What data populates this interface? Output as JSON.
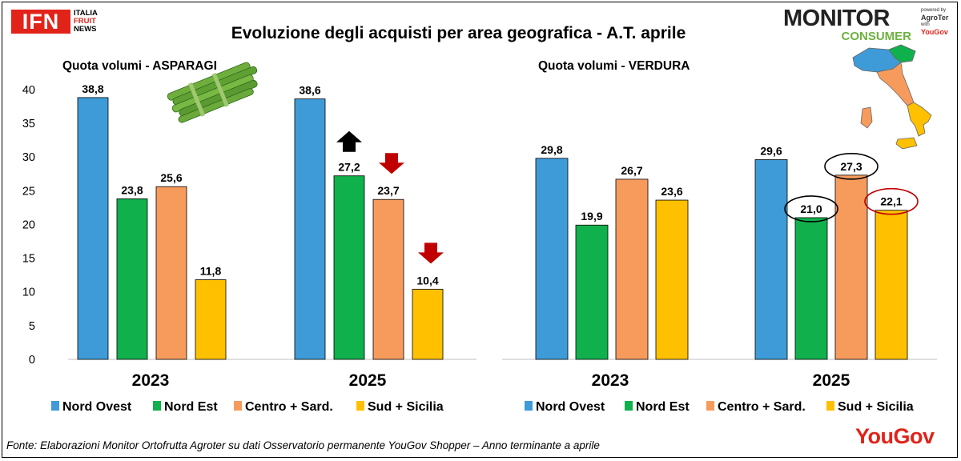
{
  "header": {
    "title": "Evoluzione degli acquisti per area geografica - A.T. aprile",
    "ifn_logo": "IFN",
    "ifn_words": [
      "ITALIA",
      "FRUIT",
      "NEWS"
    ],
    "monitor_logo": "MONITOR",
    "consumer_logo": "CONSUMER",
    "powered_by": "powered by",
    "agroter": "AgroTer",
    "with": "with",
    "yougov_small": "YouGov"
  },
  "footer": {
    "source": "Fonte: Elaborazioni Monitor Ortofrutta Agroter su dati Osservatorio permanente YouGov Shopper – Anno terminante a aprile",
    "yougov_logo": "YouGov"
  },
  "colors": {
    "nord_ovest": "#3e9bd8",
    "nord_est": "#10b04c",
    "centro": "#f79b5d",
    "sud": "#ffc000",
    "arrow_up": "#000000",
    "arrow_down": "#c00000",
    "circle_black": "#000000",
    "circle_red": "#c00000"
  },
  "chart_data": [
    {
      "type": "bar",
      "title": "Quota volumi  - ASPARAGI",
      "categories": [
        "2023",
        "2025"
      ],
      "ylim": [
        0,
        40
      ],
      "yticks": [
        0,
        5,
        10,
        15,
        20,
        25,
        30,
        35,
        40
      ],
      "series": [
        {
          "name": "Nord Ovest",
          "values": [
            38.8,
            38.6
          ],
          "labels": [
            "38,8",
            "38,6"
          ]
        },
        {
          "name": "Nord Est",
          "values": [
            23.8,
            27.2
          ],
          "labels": [
            "23,8",
            "27,2"
          ]
        },
        {
          "name": "Centro + Sard.",
          "values": [
            25.6,
            23.7
          ],
          "labels": [
            "25,6",
            "23,7"
          ]
        },
        {
          "name": "Sud + Sicilia",
          "values": [
            11.8,
            10.4
          ],
          "labels": [
            "11,8",
            "10,4"
          ]
        }
      ],
      "annotations": [
        {
          "kind": "arrow-up",
          "series": 1,
          "category": 1
        },
        {
          "kind": "arrow-down",
          "series": 2,
          "category": 1
        },
        {
          "kind": "arrow-down",
          "series": 3,
          "category": 1
        }
      ],
      "decoration": "asparagus-illustration"
    },
    {
      "type": "bar",
      "title": "Quota volumi  - VERDURA",
      "categories": [
        "2023",
        "2025"
      ],
      "ylim": [
        0,
        40
      ],
      "series": [
        {
          "name": "Nord Ovest",
          "values": [
            29.8,
            29.6
          ],
          "labels": [
            "29,8",
            "29,6"
          ]
        },
        {
          "name": "Nord Est",
          "values": [
            19.9,
            21.0
          ],
          "labels": [
            "19,9",
            "21,0"
          ]
        },
        {
          "name": "Centro + Sard.",
          "values": [
            26.7,
            27.3
          ],
          "labels": [
            "26,7",
            "27,3"
          ]
        },
        {
          "name": "Sud + Sicilia",
          "values": [
            23.6,
            22.1
          ],
          "labels": [
            "23,6",
            "22,1"
          ]
        }
      ],
      "annotations": [
        {
          "kind": "circle-black",
          "series": 1,
          "category": 1
        },
        {
          "kind": "circle-black",
          "series": 2,
          "category": 1
        },
        {
          "kind": "circle-red",
          "series": 3,
          "category": 1
        }
      ],
      "decoration": "italy-map"
    }
  ]
}
